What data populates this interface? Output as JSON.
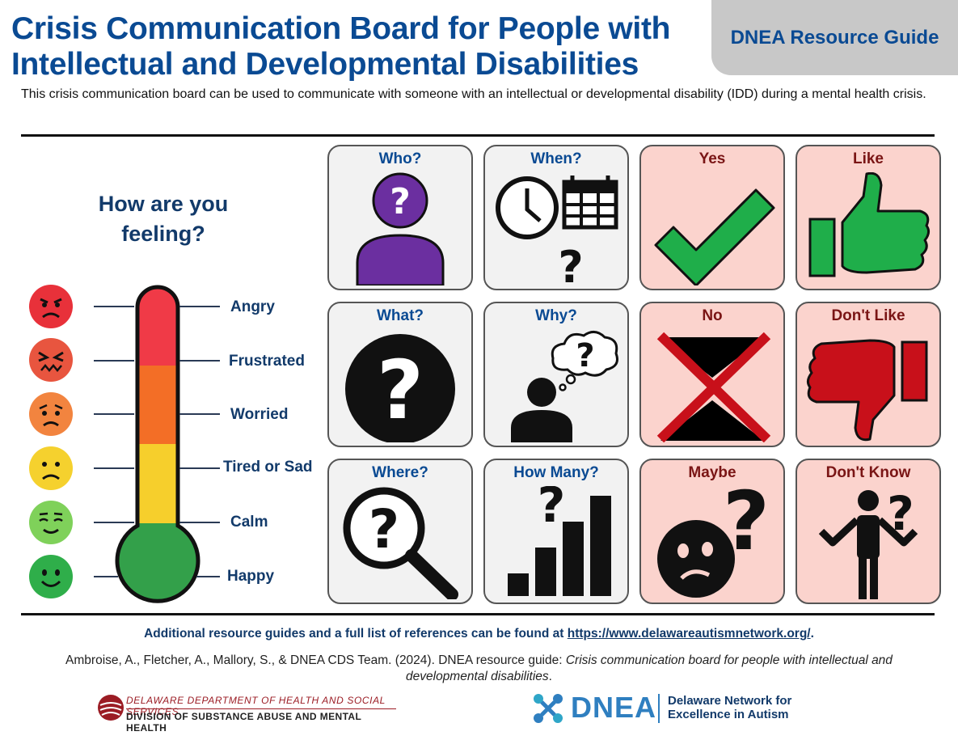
{
  "header": {
    "title": "Crisis Communication Board for People with Intellectual and Developmental Disabilities",
    "badge": "DNEA Resource Guide",
    "intro": "This crisis communication board can be used to communicate with someone with an intellectual or developmental disability (IDD) during a mental health crisis."
  },
  "feelings": {
    "question": "How are you feeling?",
    "levels": [
      {
        "label": "Angry",
        "color": "#e8313a"
      },
      {
        "label": "Frustrated",
        "color": "#e8553f"
      },
      {
        "label": "Worried",
        "color": "#f2843f"
      },
      {
        "label": "Tired or Sad",
        "color": "#f5d12e"
      },
      {
        "label": "Calm",
        "color": "#7fd15a"
      },
      {
        "label": "Happy",
        "color": "#2fae4a"
      }
    ],
    "thermometer_colors": [
      "#f03a47",
      "#f36e26",
      "#f6cf2c",
      "#33a04a"
    ]
  },
  "board": {
    "cards": [
      {
        "label": "Who?",
        "icon": "person-question-icon",
        "style": "gray"
      },
      {
        "label": "When?",
        "icon": "clock-calendar-icon",
        "style": "gray"
      },
      {
        "label": "Yes",
        "icon": "checkmark-icon",
        "style": "pink"
      },
      {
        "label": "Like",
        "icon": "thumbs-up-icon",
        "style": "pink"
      },
      {
        "label": "What?",
        "icon": "question-circle-icon",
        "style": "gray"
      },
      {
        "label": "Why?",
        "icon": "thinking-person-icon",
        "style": "gray"
      },
      {
        "label": "No",
        "icon": "x-mark-icon",
        "style": "pink"
      },
      {
        "label": "Don't Like",
        "icon": "thumbs-down-icon",
        "style": "pink"
      },
      {
        "label": "Where?",
        "icon": "magnifier-question-icon",
        "style": "gray"
      },
      {
        "label": "How Many?",
        "icon": "bar-chart-question-icon",
        "style": "gray"
      },
      {
        "label": "Maybe",
        "icon": "confused-face-icon",
        "style": "pink"
      },
      {
        "label": "Don't Know",
        "icon": "shrug-person-icon",
        "style": "pink"
      }
    ]
  },
  "footer": {
    "resources_text": "Additional resource guides and a full list of references can be found at",
    "resources_link": "https://www.delawareautismnetwork.org/",
    "resources_end": ".",
    "citation_plain": "Ambroise, A., Fletcher, A., Mallory, S., & DNEA CDS Team. (2024). DNEA resource guide: ",
    "citation_italic": "Crisis communication board for people with intellectual and developmental disabilities",
    "citation_end": ".",
    "dhss_line1": "DELAWARE DEPARTMENT OF HEALTH AND SOCIAL SERVICES",
    "dhss_line2": "DIVISION OF SUBSTANCE ABUSE AND MENTAL HEALTH",
    "dnea_short": "DNEA",
    "dnea_line1": "Delaware Network for",
    "dnea_line2": "Excellence in Autism"
  }
}
